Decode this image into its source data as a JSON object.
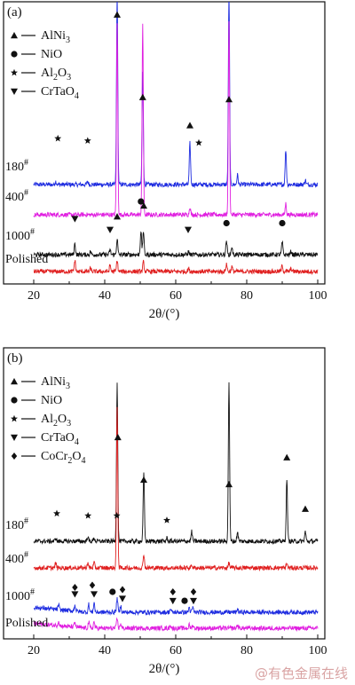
{
  "watermark": "@有色金属在线",
  "chart_data": [
    {
      "type": "line",
      "panel_label": "(a)",
      "xlabel": "2θ/(°)",
      "xlim": [
        20,
        100
      ],
      "x_ticks": [
        "20",
        "40",
        "60",
        "80",
        "100"
      ],
      "grid": false,
      "legend_position": "top-left",
      "legend": [
        {
          "marker": "triangle-up",
          "label_main": "AlNi",
          "label_sub": "3",
          "label_tail": ""
        },
        {
          "marker": "circle",
          "label_main": "NiO",
          "label_sub": "",
          "label_tail": ""
        },
        {
          "marker": "star",
          "label_main": "Al",
          "label_sub": "2",
          "label_tail": "O",
          "label_sub2": "3"
        },
        {
          "marker": "triangle-down",
          "label_main": "CrTaO",
          "label_sub": "4",
          "label_tail": ""
        }
      ],
      "series": [
        {
          "name": "180",
          "sup": "#",
          "color": "#1f2de0",
          "offset": 0.6,
          "peaks": [
            [
              26.2,
              0.02
            ],
            [
              35.2,
              0.02
            ],
            [
              43.5,
              1.2
            ],
            [
              50.7,
              0.7
            ],
            [
              64.0,
              0.26
            ],
            [
              75.0,
              1.2
            ],
            [
              77.4,
              0.06
            ],
            [
              91.0,
              0.22
            ],
            [
              96.5,
              0.03
            ]
          ]
        },
        {
          "name": "400",
          "sup": "#",
          "color": "#e01fe0",
          "offset": 0.43,
          "peaks": [
            [
              43.5,
              1.2
            ],
            [
              50.7,
              1.2
            ],
            [
              64.0,
              0.05
            ],
            [
              75.0,
              1.2
            ],
            [
              91.0,
              0.07
            ]
          ]
        },
        {
          "name": "1000",
          "sup": "#",
          "color": "#111111",
          "offset": 0.17,
          "peaks": [
            [
              31.6,
              0.07
            ],
            [
              36.0,
              0.02
            ],
            [
              41.5,
              0.03
            ],
            [
              43.5,
              0.1
            ],
            [
              50.2,
              0.15
            ],
            [
              50.9,
              0.15
            ],
            [
              63.6,
              0.02
            ],
            [
              74.3,
              0.09
            ],
            [
              75.8,
              0.05
            ],
            [
              90.0,
              0.08
            ],
            [
              92.5,
              0.02
            ]
          ]
        },
        {
          "name": "Polished",
          "sup": "",
          "color": "#e02020",
          "offset": 0.05,
          "peaks": [
            [
              31.6,
              0.07
            ],
            [
              36.0,
              0.02
            ],
            [
              41.5,
              0.04
            ],
            [
              43.5,
              0.07
            ],
            [
              50.9,
              0.06
            ],
            [
              63.6,
              0.02
            ],
            [
              74.3,
              0.05
            ],
            [
              75.8,
              0.03
            ],
            [
              90.0,
              0.04
            ],
            [
              92.5,
              0.02
            ]
          ]
        }
      ],
      "markers": [
        {
          "type": "triangle-up",
          "x": 43.5,
          "y": 1.24
        },
        {
          "type": "triangle-up",
          "x": 50.7,
          "y": 0.86
        },
        {
          "type": "triangle-up",
          "x": 64.0,
          "y": 0.73
        },
        {
          "type": "triangle-up",
          "x": 75.0,
          "y": 0.85
        },
        {
          "type": "star",
          "x": 26.8,
          "y": 0.67
        },
        {
          "type": "star",
          "x": 35.2,
          "y": 0.66
        },
        {
          "type": "star",
          "x": 66.5,
          "y": 0.65
        },
        {
          "type": "triangle-down",
          "x": 31.6,
          "y": 0.3
        },
        {
          "type": "triangle-down",
          "x": 41.5,
          "y": 0.25
        },
        {
          "type": "triangle-down",
          "x": 63.5,
          "y": 0.25
        },
        {
          "type": "triangle-up",
          "x": 43.5,
          "y": 0.31
        },
        {
          "type": "circle",
          "x": 50.2,
          "y": 0.38
        },
        {
          "type": "triangle-up",
          "x": 51.0,
          "y": 0.36
        },
        {
          "type": "circle",
          "x": 74.3,
          "y": 0.28
        },
        {
          "type": "circle",
          "x": 90.0,
          "y": 0.28
        }
      ]
    },
    {
      "type": "line",
      "panel_label": "(b)",
      "xlabel": "2θ/(°)",
      "xlim": [
        20,
        100
      ],
      "x_ticks": [
        "20",
        "40",
        "60",
        "80",
        "100"
      ],
      "grid": false,
      "legend_position": "top-left",
      "legend": [
        {
          "marker": "triangle-up",
          "label_main": "AlNi",
          "label_sub": "3",
          "label_tail": ""
        },
        {
          "marker": "circle",
          "label_main": "NiO",
          "label_sub": "",
          "label_tail": ""
        },
        {
          "marker": "star",
          "label_main": "Al",
          "label_sub": "2",
          "label_tail": "O",
          "label_sub2": "3"
        },
        {
          "marker": "triangle-down",
          "label_main": "CrTaO",
          "label_sub": "4",
          "label_tail": ""
        },
        {
          "marker": "diamond",
          "label_main": "CoCr",
          "label_sub": "2",
          "label_tail": "O",
          "label_sub2": "4"
        }
      ],
      "series": [
        {
          "name": "180",
          "sup": "#",
          "color": "#111111",
          "offset": 0.5,
          "peaks": [
            [
              26.2,
              0.02
            ],
            [
              35.2,
              0.03
            ],
            [
              37.0,
              0.02
            ],
            [
              43.5,
              1.0
            ],
            [
              51.0,
              0.43
            ],
            [
              57.5,
              0.02
            ],
            [
              64.5,
              0.06
            ],
            [
              75.0,
              1.0
            ],
            [
              77.4,
              0.06
            ],
            [
              91.3,
              0.39
            ],
            [
              96.5,
              0.06
            ]
          ]
        },
        {
          "name": "400",
          "sup": "#",
          "color": "#e02020",
          "offset": 0.34,
          "peaks": [
            [
              26.2,
              0.03
            ],
            [
              35.2,
              0.03
            ],
            [
              37.0,
              0.03
            ],
            [
              43.5,
              1.0
            ],
            [
              51.0,
              0.09
            ],
            [
              64.5,
              0.02
            ],
            [
              75.0,
              0.03
            ],
            [
              91.3,
              0.03
            ]
          ]
        },
        {
          "name": "1000",
          "sup": "#",
          "color": "#1f2de0",
          "offset": 0.13,
          "peaks": [
            [
              27.0,
              0.03
            ],
            [
              31.6,
              0.04
            ],
            [
              35.5,
              0.05
            ],
            [
              37.0,
              0.06
            ],
            [
              43.5,
              0.09
            ],
            [
              44.5,
              0.04
            ],
            [
              58.5,
              0.02
            ],
            [
              63.8,
              0.03
            ],
            [
              64.8,
              0.03
            ],
            [
              77.4,
              0.02
            ]
          ]
        },
        {
          "name": "Polished",
          "sup": "",
          "color": "#e01fe0",
          "offset": 0.03,
          "peaks": [
            [
              27.0,
              0.03
            ],
            [
              31.6,
              0.03
            ],
            [
              35.5,
              0.04
            ],
            [
              37.0,
              0.04
            ],
            [
              43.5,
              0.06
            ],
            [
              44.5,
              0.03
            ],
            [
              58.5,
              0.02
            ],
            [
              63.8,
              0.02
            ],
            [
              64.8,
              0.02
            ],
            [
              77.4,
              0.02
            ]
          ]
        }
      ],
      "markers": [
        {
          "type": "triangle-up",
          "x": 43.7,
          "y": 0.9
        },
        {
          "type": "star",
          "x": 43.4,
          "y": 0.55
        },
        {
          "type": "triangle-up",
          "x": 51.0,
          "y": 0.71
        },
        {
          "type": "triangle-up",
          "x": 75.0,
          "y": 0.69
        },
        {
          "type": "triangle-up",
          "x": 91.3,
          "y": 0.81
        },
        {
          "type": "triangle-up",
          "x": 96.5,
          "y": 0.58
        },
        {
          "type": "star",
          "x": 26.5,
          "y": 0.56
        },
        {
          "type": "star",
          "x": 35.3,
          "y": 0.55
        },
        {
          "type": "star",
          "x": 57.5,
          "y": 0.53
        },
        {
          "type": "diamond",
          "x": 31.6,
          "y": 0.23
        },
        {
          "type": "diamond",
          "x": 36.5,
          "y": 0.24
        },
        {
          "type": "triangle-down",
          "x": 31.6,
          "y": 0.2
        },
        {
          "type": "triangle-down",
          "x": 37.0,
          "y": 0.2
        },
        {
          "type": "circle",
          "x": 42.2,
          "y": 0.21
        },
        {
          "type": "diamond",
          "x": 45.0,
          "y": 0.22
        },
        {
          "type": "triangle-down",
          "x": 45.0,
          "y": 0.18
        },
        {
          "type": "diamond",
          "x": 59.2,
          "y": 0.21
        },
        {
          "type": "triangle-down",
          "x": 59.2,
          "y": 0.17
        },
        {
          "type": "circle",
          "x": 62.5,
          "y": 0.17
        },
        {
          "type": "diamond",
          "x": 65.0,
          "y": 0.21
        },
        {
          "type": "triangle-down",
          "x": 65.0,
          "y": 0.17
        }
      ]
    }
  ]
}
